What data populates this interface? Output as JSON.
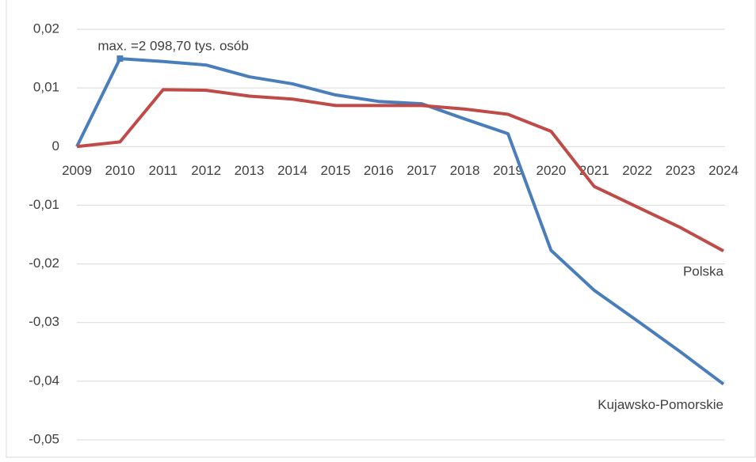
{
  "chart_data": {
    "type": "line",
    "categories": [
      "2009",
      "2010",
      "2011",
      "2012",
      "2013",
      "2014",
      "2015",
      "2016",
      "2017",
      "2018",
      "2019",
      "2020",
      "2021",
      "2022",
      "2023",
      "2024"
    ],
    "series": [
      {
        "name": "Kujawsko-Pomorskie",
        "color": "#4a7ebb",
        "values": [
          0,
          0.015,
          0.0145,
          0.0139,
          0.0119,
          0.0107,
          0.0088,
          0.0077,
          0.0073,
          0.0047,
          0.0022,
          -0.0177,
          -0.0245,
          -0.0297,
          -0.035,
          -0.0405
        ]
      },
      {
        "name": "Polska",
        "color": "#be4b48",
        "values": [
          0,
          0.0008,
          0.0097,
          0.0096,
          0.0086,
          0.0081,
          0.007,
          0.007,
          0.007,
          0.0064,
          0.0055,
          0.0026,
          -0.0068,
          -0.0103,
          -0.0138,
          -0.0178
        ]
      }
    ],
    "annotation": "max. =2 098,70 tys. osób",
    "ylim": [
      -0.05,
      0.02
    ],
    "yticks": [
      {
        "value": -0.05,
        "label": "-0,05"
      },
      {
        "value": -0.04,
        "label": "-0,04"
      },
      {
        "value": -0.03,
        "label": "-0,03"
      },
      {
        "value": -0.02,
        "label": "-0,02"
      },
      {
        "value": -0.01,
        "label": "-0,01"
      },
      0,
      {
        "value": 0.01,
        "label": "0,01"
      },
      {
        "value": 0.02,
        "label": "0,02"
      }
    ],
    "grid": true
  }
}
